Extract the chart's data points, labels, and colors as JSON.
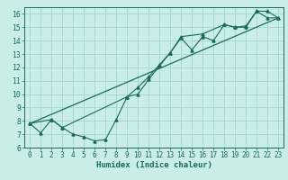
{
  "xlabel": "Humidex (Indice chaleur)",
  "ylabel": "",
  "xlim": [
    -0.5,
    23.5
  ],
  "ylim": [
    6,
    16.5
  ],
  "xticks": [
    0,
    1,
    2,
    3,
    4,
    5,
    6,
    7,
    8,
    9,
    10,
    11,
    12,
    13,
    14,
    15,
    16,
    17,
    18,
    19,
    20,
    21,
    22,
    23
  ],
  "yticks": [
    6,
    7,
    8,
    9,
    10,
    11,
    12,
    13,
    14,
    15,
    16
  ],
  "bg_color": "#c9ede9",
  "line_color": "#1a6b5a",
  "grid_color": "#aad8d3",
  "line1_x": [
    0,
    1,
    2,
    3,
    4,
    5,
    6,
    7,
    8,
    9,
    10,
    11,
    12,
    13,
    14,
    15,
    16,
    17,
    18,
    19,
    20,
    21,
    22,
    23
  ],
  "line1_y": [
    7.8,
    7.1,
    8.1,
    7.5,
    7.0,
    6.8,
    6.5,
    6.6,
    8.1,
    9.8,
    10.0,
    11.1,
    12.1,
    13.1,
    14.2,
    13.3,
    14.3,
    14.0,
    15.2,
    15.0,
    15.0,
    16.2,
    15.7,
    15.7
  ],
  "line2_x": [
    0,
    2,
    3,
    9,
    10,
    11,
    12,
    13,
    14,
    16,
    18,
    19,
    20,
    21,
    22,
    23
  ],
  "line2_y": [
    7.8,
    8.1,
    7.5,
    9.8,
    10.5,
    11.3,
    12.2,
    13.1,
    14.3,
    14.5,
    15.2,
    15.0,
    15.1,
    16.2,
    16.2,
    15.7
  ],
  "line3_x": [
    0,
    23
  ],
  "line3_y": [
    7.8,
    15.7
  ],
  "font_size_label": 6.5,
  "font_size_tick": 5.5
}
